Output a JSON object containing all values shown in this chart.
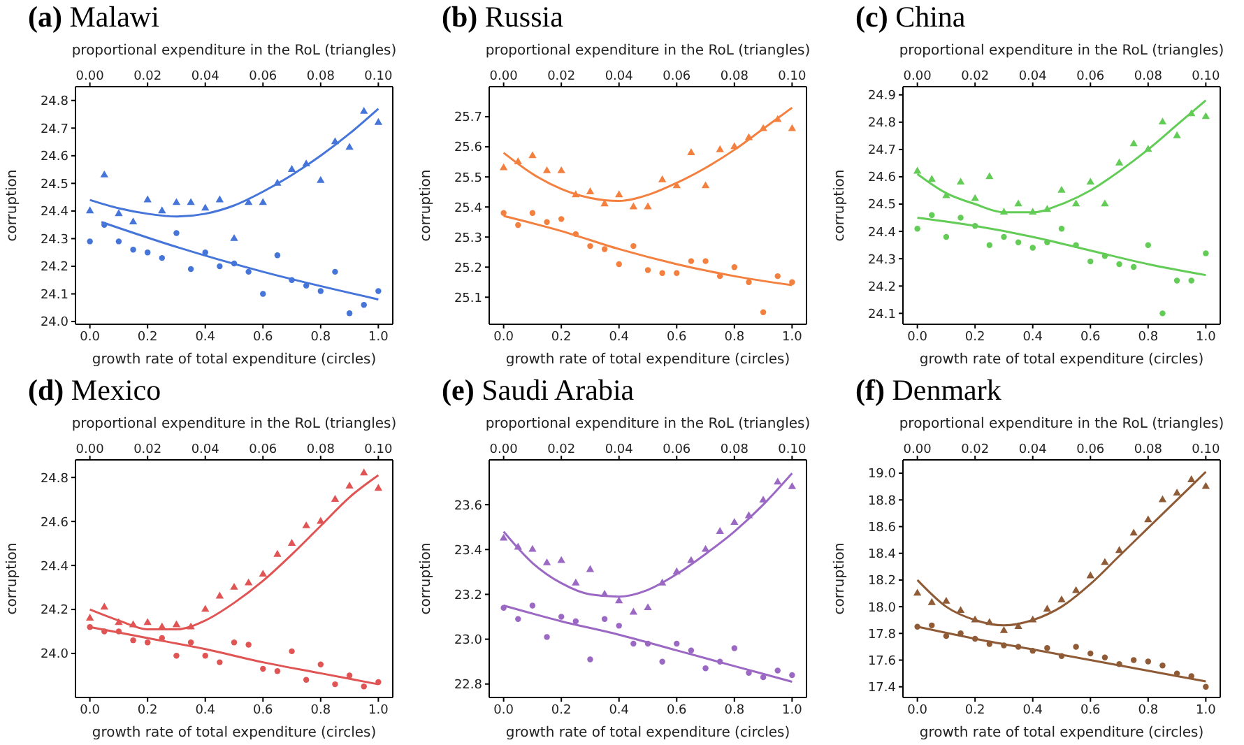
{
  "chart_data": [
    {
      "type": "scatter",
      "title": "(a) Malawi",
      "xlabel": "growth rate of total expenditure (circles)",
      "x2label": "proportional expenditure in the RoL (triangles)",
      "ylabel": "corruption",
      "xlim": [
        -0.05,
        1.05
      ],
      "xticks": [
        {
          "value": 0,
          "label": "0.0"
        },
        {
          "value": 0.2,
          "label": "0.2"
        },
        {
          "value": 0.4,
          "label": "0.4"
        },
        {
          "value": 0.6,
          "label": "0.6"
        },
        {
          "value": 0.8,
          "label": "0.8"
        },
        {
          "value": 1,
          "label": "1.0"
        }
      ],
      "x2lim": [
        -0.005,
        0.105
      ],
      "x2ticks": [
        {
          "value": 0,
          "label": "0.00"
        },
        {
          "value": 0.02,
          "label": "0.02"
        },
        {
          "value": 0.04,
          "label": "0.04"
        },
        {
          "value": 0.06,
          "label": "0.06"
        },
        {
          "value": 0.08,
          "label": "0.08"
        },
        {
          "value": 0.1,
          "label": "0.10"
        }
      ],
      "ylim": [
        23.99,
        24.85
      ],
      "yticks": [
        {
          "value": 24,
          "label": "24.0"
        },
        24.1,
        24.2,
        24.3,
        24.4,
        24.5,
        24.6,
        24.7,
        24.8
      ],
      "series": [
        {
          "type": "scatter",
          "marker": "circle",
          "color": "#4575d9",
          "x": [
            0,
            0.05,
            0.1,
            0.15,
            0.2,
            0.25,
            0.3,
            0.35,
            0.4,
            0.45,
            0.5,
            0.55,
            0.6,
            0.65,
            0.7,
            0.75,
            0.8,
            0.85,
            0.9,
            0.95,
            1
          ],
          "values": [
            24.29,
            24.35,
            24.29,
            24.26,
            24.25,
            24.23,
            24.32,
            24.19,
            24.25,
            24.2,
            24.21,
            24.18,
            24.1,
            24.24,
            24.15,
            24.13,
            24.11,
            24.18,
            24.03,
            24.06,
            24.11
          ]
        },
        {
          "type": "line",
          "color": "#4575d9",
          "x": [
            0.04,
            0.3,
            0.6,
            1
          ],
          "values": [
            24.36,
            24.27,
            24.18,
            24.08
          ]
        },
        {
          "type": "scatter",
          "marker": "triangle",
          "axis": "x2",
          "color": "#4575d9",
          "x": [
            0,
            0.005,
            0.01,
            0.015,
            0.02,
            0.025,
            0.03,
            0.035,
            0.04,
            0.045,
            0.05,
            0.055,
            0.06,
            0.065,
            0.07,
            0.075,
            0.08,
            0.085,
            0.09,
            0.095,
            0.1
          ],
          "values": [
            24.4,
            24.53,
            24.39,
            24.36,
            24.44,
            24.4,
            24.43,
            24.43,
            24.41,
            24.44,
            24.3,
            24.43,
            24.43,
            24.5,
            24.55,
            24.57,
            24.51,
            24.65,
            24.63,
            24.76,
            24.72
          ]
        },
        {
          "type": "line",
          "axis": "x2",
          "color": "#4575d9",
          "x": [
            0,
            0.01,
            0.02,
            0.03,
            0.04,
            0.05,
            0.06,
            0.07,
            0.08,
            0.09,
            0.1
          ],
          "values": [
            24.44,
            24.41,
            24.39,
            24.38,
            24.39,
            24.42,
            24.47,
            24.53,
            24.6,
            24.68,
            24.77
          ]
        }
      ]
    },
    {
      "type": "scatter",
      "title": "(b) Russia",
      "xlabel": "growth rate of total expenditure (circles)",
      "x2label": "proportional expenditure in the RoL (triangles)",
      "ylabel": "corruption",
      "xlim": [
        -0.05,
        1.05
      ],
      "xticks": [
        {
          "value": 0,
          "label": "0.0"
        },
        {
          "value": 0.2,
          "label": "0.2"
        },
        {
          "value": 0.4,
          "label": "0.4"
        },
        {
          "value": 0.6,
          "label": "0.6"
        },
        {
          "value": 0.8,
          "label": "0.8"
        },
        {
          "value": 1,
          "label": "1.0"
        }
      ],
      "x2lim": [
        -0.005,
        0.105
      ],
      "x2ticks": [
        {
          "value": 0,
          "label": "0.00"
        },
        {
          "value": 0.02,
          "label": "0.02"
        },
        {
          "value": 0.04,
          "label": "0.04"
        },
        {
          "value": 0.06,
          "label": "0.06"
        },
        {
          "value": 0.08,
          "label": "0.08"
        },
        {
          "value": 0.1,
          "label": "0.10"
        }
      ],
      "ylim": [
        25.01,
        25.8
      ],
      "yticks": [
        25.1,
        25.2,
        25.3,
        25.4,
        25.5,
        25.6,
        25.7
      ],
      "series": [
        {
          "type": "scatter",
          "marker": "circle",
          "color": "#f4803f",
          "x": [
            0,
            0.05,
            0.1,
            0.15,
            0.2,
            0.25,
            0.3,
            0.35,
            0.4,
            0.45,
            0.5,
            0.55,
            0.6,
            0.65,
            0.7,
            0.75,
            0.8,
            0.85,
            0.9,
            0.95,
            1
          ],
          "values": [
            25.38,
            25.34,
            25.38,
            25.35,
            25.36,
            25.31,
            25.27,
            25.26,
            25.21,
            25.27,
            25.19,
            25.18,
            25.18,
            25.22,
            25.22,
            25.17,
            25.2,
            25.15,
            25.05,
            25.17,
            25.15
          ]
        },
        {
          "type": "line",
          "color": "#f4803f",
          "x": [
            0,
            0.2,
            0.4,
            0.6,
            0.8,
            1
          ],
          "values": [
            25.37,
            25.32,
            25.26,
            25.21,
            25.17,
            25.14
          ]
        },
        {
          "type": "scatter",
          "marker": "triangle",
          "axis": "x2",
          "color": "#f4803f",
          "x": [
            0,
            0.005,
            0.01,
            0.015,
            0.02,
            0.025,
            0.03,
            0.035,
            0.04,
            0.045,
            0.05,
            0.055,
            0.06,
            0.065,
            0.07,
            0.075,
            0.08,
            0.085,
            0.09,
            0.095,
            0.1
          ],
          "values": [
            25.53,
            25.55,
            25.57,
            25.52,
            25.52,
            25.44,
            25.45,
            25.41,
            25.44,
            25.4,
            25.4,
            25.49,
            25.47,
            25.58,
            25.47,
            25.59,
            25.6,
            25.63,
            25.66,
            25.69,
            25.66
          ]
        },
        {
          "type": "line",
          "axis": "x2",
          "color": "#f4803f",
          "x": [
            0,
            0.01,
            0.02,
            0.03,
            0.04,
            0.05,
            0.06,
            0.07,
            0.08,
            0.09,
            0.1
          ],
          "values": [
            25.58,
            25.51,
            25.46,
            25.43,
            25.42,
            25.44,
            25.48,
            25.53,
            25.59,
            25.66,
            25.73
          ]
        }
      ]
    },
    {
      "type": "scatter",
      "title": "(c) China",
      "xlabel": "growth rate of total expenditure (circles)",
      "x2label": "proportional expenditure in the RoL (triangles)",
      "ylabel": "corruption",
      "xlim": [
        -0.05,
        1.05
      ],
      "xticks": [
        {
          "value": 0,
          "label": "0.0"
        },
        {
          "value": 0.2,
          "label": "0.2"
        },
        {
          "value": 0.4,
          "label": "0.4"
        },
        {
          "value": 0.6,
          "label": "0.6"
        },
        {
          "value": 0.8,
          "label": "0.8"
        },
        {
          "value": 1,
          "label": "1.0"
        }
      ],
      "x2lim": [
        -0.005,
        0.105
      ],
      "x2ticks": [
        {
          "value": 0,
          "label": "0.00"
        },
        {
          "value": 0.02,
          "label": "0.02"
        },
        {
          "value": 0.04,
          "label": "0.04"
        },
        {
          "value": 0.06,
          "label": "0.06"
        },
        {
          "value": 0.08,
          "label": "0.08"
        },
        {
          "value": 0.1,
          "label": "0.10"
        }
      ],
      "ylim": [
        24.06,
        24.93
      ],
      "yticks": [
        24.1,
        24.2,
        24.3,
        24.4,
        24.5,
        24.6,
        24.7,
        24.8,
        24.9
      ],
      "series": [
        {
          "type": "scatter",
          "marker": "circle",
          "color": "#62cc56",
          "x": [
            0,
            0.05,
            0.1,
            0.15,
            0.2,
            0.25,
            0.3,
            0.35,
            0.4,
            0.45,
            0.5,
            0.55,
            0.6,
            0.65,
            0.7,
            0.75,
            0.8,
            0.85,
            0.9,
            0.95,
            1
          ],
          "values": [
            24.41,
            24.46,
            24.38,
            24.45,
            24.42,
            24.35,
            24.38,
            24.36,
            24.34,
            24.36,
            24.41,
            24.35,
            24.29,
            24.31,
            24.28,
            24.27,
            24.35,
            24.1,
            24.22,
            24.22,
            24.32
          ]
        },
        {
          "type": "line",
          "color": "#62cc56",
          "x": [
            0,
            0.2,
            0.4,
            0.6,
            0.8,
            1
          ],
          "values": [
            24.45,
            24.42,
            24.38,
            24.33,
            24.28,
            24.24
          ]
        },
        {
          "type": "scatter",
          "marker": "triangle",
          "axis": "x2",
          "color": "#62cc56",
          "x": [
            0,
            0.005,
            0.01,
            0.015,
            0.02,
            0.025,
            0.03,
            0.035,
            0.04,
            0.045,
            0.05,
            0.055,
            0.06,
            0.065,
            0.07,
            0.075,
            0.08,
            0.085,
            0.09,
            0.095,
            0.1
          ],
          "values": [
            24.62,
            24.59,
            24.53,
            24.58,
            24.52,
            24.6,
            24.47,
            24.5,
            24.47,
            24.48,
            24.55,
            24.5,
            24.58,
            24.5,
            24.65,
            24.72,
            24.7,
            24.8,
            24.75,
            24.83,
            24.82
          ]
        },
        {
          "type": "line",
          "axis": "x2",
          "color": "#62cc56",
          "x": [
            0,
            0.01,
            0.02,
            0.03,
            0.04,
            0.05,
            0.06,
            0.07,
            0.08,
            0.09,
            0.1
          ],
          "values": [
            24.61,
            24.54,
            24.5,
            24.47,
            24.47,
            24.5,
            24.55,
            24.62,
            24.7,
            24.79,
            24.88
          ]
        }
      ]
    },
    {
      "type": "scatter",
      "title": "(d) Mexico",
      "xlabel": "growth rate of total expenditure (circles)",
      "x2label": "proportional expenditure in the RoL (triangles)",
      "ylabel": "corruption",
      "xlim": [
        -0.05,
        1.05
      ],
      "xticks": [
        {
          "value": 0,
          "label": "0.0"
        },
        {
          "value": 0.2,
          "label": "0.2"
        },
        {
          "value": 0.4,
          "label": "0.4"
        },
        {
          "value": 0.6,
          "label": "0.6"
        },
        {
          "value": 0.8,
          "label": "0.8"
        },
        {
          "value": 1,
          "label": "1.0"
        }
      ],
      "x2lim": [
        -0.005,
        0.105
      ],
      "x2ticks": [
        {
          "value": 0,
          "label": "0.00"
        },
        {
          "value": 0.02,
          "label": "0.02"
        },
        {
          "value": 0.04,
          "label": "0.04"
        },
        {
          "value": 0.06,
          "label": "0.06"
        },
        {
          "value": 0.08,
          "label": "0.08"
        },
        {
          "value": 0.1,
          "label": "0.10"
        }
      ],
      "ylim": [
        23.8,
        24.88
      ],
      "yticks": [
        {
          "value": 24,
          "label": "24.0"
        },
        24.2,
        24.4,
        24.6,
        24.8
      ],
      "series": [
        {
          "type": "scatter",
          "marker": "circle",
          "color": "#e05454",
          "x": [
            0,
            0.05,
            0.1,
            0.15,
            0.2,
            0.25,
            0.3,
            0.35,
            0.4,
            0.45,
            0.5,
            0.55,
            0.6,
            0.65,
            0.7,
            0.75,
            0.8,
            0.85,
            0.9,
            0.95,
            1
          ],
          "values": [
            24.12,
            24.1,
            24.1,
            24.06,
            24.05,
            24.07,
            23.99,
            24.05,
            23.99,
            23.96,
            24.05,
            24.04,
            23.93,
            23.92,
            24.01,
            23.88,
            23.95,
            23.86,
            23.9,
            23.85,
            23.87
          ]
        },
        {
          "type": "line",
          "color": "#e05454",
          "x": [
            0,
            0.2,
            0.4,
            0.6,
            0.8,
            1
          ],
          "values": [
            24.12,
            24.07,
            24.02,
            23.96,
            23.91,
            23.86
          ]
        },
        {
          "type": "scatter",
          "marker": "triangle",
          "axis": "x2",
          "color": "#e05454",
          "x": [
            0,
            0.005,
            0.01,
            0.015,
            0.02,
            0.025,
            0.03,
            0.035,
            0.04,
            0.045,
            0.05,
            0.055,
            0.06,
            0.065,
            0.07,
            0.075,
            0.08,
            0.085,
            0.09,
            0.095,
            0.1
          ],
          "values": [
            24.16,
            24.21,
            24.14,
            24.13,
            24.14,
            24.12,
            24.13,
            24.12,
            24.2,
            24.26,
            24.3,
            24.32,
            24.36,
            24.45,
            24.5,
            24.58,
            24.6,
            24.7,
            24.76,
            24.82,
            24.75
          ]
        },
        {
          "type": "line",
          "axis": "x2",
          "color": "#e05454",
          "x": [
            0,
            0.01,
            0.02,
            0.03,
            0.04,
            0.05,
            0.06,
            0.07,
            0.08,
            0.09,
            0.1
          ],
          "values": [
            24.2,
            24.15,
            24.11,
            24.11,
            24.15,
            24.23,
            24.33,
            24.45,
            24.58,
            24.71,
            24.81
          ]
        }
      ]
    },
    {
      "type": "scatter",
      "title": "(e) Saudi Arabia",
      "xlabel": "growth rate of total expenditure (circles)",
      "x2label": "proportional expenditure in the RoL (triangles)",
      "ylabel": "corruption",
      "xlim": [
        -0.05,
        1.05
      ],
      "xticks": [
        {
          "value": 0,
          "label": "0.0"
        },
        {
          "value": 0.2,
          "label": "0.2"
        },
        {
          "value": 0.4,
          "label": "0.4"
        },
        {
          "value": 0.6,
          "label": "0.6"
        },
        {
          "value": 0.8,
          "label": "0.8"
        },
        {
          "value": 1,
          "label": "1.0"
        }
      ],
      "x2lim": [
        -0.005,
        0.105
      ],
      "x2ticks": [
        {
          "value": 0,
          "label": "0.00"
        },
        {
          "value": 0.02,
          "label": "0.02"
        },
        {
          "value": 0.04,
          "label": "0.04"
        },
        {
          "value": 0.06,
          "label": "0.06"
        },
        {
          "value": 0.08,
          "label": "0.08"
        },
        {
          "value": 0.1,
          "label": "0.10"
        }
      ],
      "ylim": [
        22.74,
        23.8
      ],
      "yticks": [
        22.8,
        {
          "value": 23,
          "label": "23.0"
        },
        23.2,
        23.4,
        23.6
      ],
      "series": [
        {
          "type": "scatter",
          "marker": "circle",
          "color": "#9b69c4",
          "x": [
            0,
            0.05,
            0.1,
            0.15,
            0.2,
            0.25,
            0.3,
            0.35,
            0.4,
            0.45,
            0.5,
            0.55,
            0.6,
            0.65,
            0.7,
            0.75,
            0.8,
            0.85,
            0.9,
            0.95,
            1
          ],
          "values": [
            23.14,
            23.09,
            23.15,
            23.01,
            23.1,
            23.08,
            22.91,
            23.09,
            23.06,
            22.98,
            22.98,
            22.9,
            22.98,
            22.95,
            22.87,
            22.9,
            22.96,
            22.85,
            22.83,
            22.86,
            22.84
          ]
        },
        {
          "type": "line",
          "color": "#9b69c4",
          "x": [
            0,
            0.2,
            0.4,
            0.6,
            0.8,
            1
          ],
          "values": [
            23.15,
            23.08,
            23.02,
            22.95,
            22.88,
            22.81
          ]
        },
        {
          "type": "scatter",
          "marker": "triangle",
          "axis": "x2",
          "color": "#9b69c4",
          "x": [
            0,
            0.005,
            0.01,
            0.015,
            0.02,
            0.025,
            0.03,
            0.035,
            0.04,
            0.045,
            0.05,
            0.055,
            0.06,
            0.065,
            0.07,
            0.075,
            0.08,
            0.085,
            0.09,
            0.095,
            0.1
          ],
          "values": [
            23.45,
            23.41,
            23.4,
            23.34,
            23.35,
            23.25,
            23.31,
            23.2,
            23.17,
            23.12,
            23.14,
            23.25,
            23.3,
            23.35,
            23.4,
            23.48,
            23.52,
            23.55,
            23.62,
            23.7,
            23.68
          ]
        },
        {
          "type": "line",
          "axis": "x2",
          "color": "#9b69c4",
          "x": [
            0,
            0.01,
            0.02,
            0.03,
            0.04,
            0.05,
            0.06,
            0.07,
            0.08,
            0.09,
            0.1
          ],
          "values": [
            23.48,
            23.34,
            23.25,
            23.2,
            23.19,
            23.22,
            23.29,
            23.38,
            23.48,
            23.6,
            23.74
          ]
        }
      ]
    },
    {
      "type": "scatter",
      "title": "(f) Denmark",
      "xlabel": "growth rate of total expenditure (circles)",
      "x2label": "proportional expenditure in the RoL (triangles)",
      "ylabel": "corruption",
      "xlim": [
        -0.05,
        1.05
      ],
      "xticks": [
        {
          "value": 0,
          "label": "0.0"
        },
        {
          "value": 0.2,
          "label": "0.2"
        },
        {
          "value": 0.4,
          "label": "0.4"
        },
        {
          "value": 0.6,
          "label": "0.6"
        },
        {
          "value": 0.8,
          "label": "0.8"
        },
        {
          "value": 1,
          "label": "1.0"
        }
      ],
      "x2lim": [
        -0.005,
        0.105
      ],
      "x2ticks": [
        {
          "value": 0,
          "label": "0.00"
        },
        {
          "value": 0.02,
          "label": "0.02"
        },
        {
          "value": 0.04,
          "label": "0.04"
        },
        {
          "value": 0.06,
          "label": "0.06"
        },
        {
          "value": 0.08,
          "label": "0.08"
        },
        {
          "value": 0.1,
          "label": "0.10"
        }
      ],
      "ylim": [
        17.32,
        19.1
      ],
      "yticks": [
        17.4,
        17.6,
        17.8,
        {
          "value": 18,
          "label": "18.0"
        },
        18.2,
        18.4,
        18.6,
        18.8,
        {
          "value": 19,
          "label": "19.0"
        }
      ],
      "series": [
        {
          "type": "scatter",
          "marker": "circle",
          "color": "#8f5b36",
          "x": [
            0,
            0.05,
            0.1,
            0.15,
            0.2,
            0.25,
            0.3,
            0.35,
            0.4,
            0.45,
            0.5,
            0.55,
            0.6,
            0.65,
            0.7,
            0.75,
            0.8,
            0.85,
            0.9,
            0.95,
            1
          ],
          "values": [
            17.85,
            17.86,
            17.78,
            17.8,
            17.76,
            17.72,
            17.71,
            17.7,
            17.67,
            17.69,
            17.63,
            17.7,
            17.65,
            17.62,
            17.57,
            17.6,
            17.59,
            17.56,
            17.5,
            17.48,
            17.4
          ]
        },
        {
          "type": "line",
          "color": "#8f5b36",
          "x": [
            0,
            0.2,
            0.4,
            0.6,
            0.8,
            1
          ],
          "values": [
            17.85,
            17.76,
            17.68,
            17.6,
            17.52,
            17.44
          ]
        },
        {
          "type": "scatter",
          "marker": "triangle",
          "axis": "x2",
          "color": "#8f5b36",
          "x": [
            0,
            0.005,
            0.01,
            0.015,
            0.02,
            0.025,
            0.03,
            0.035,
            0.04,
            0.045,
            0.05,
            0.055,
            0.06,
            0.065,
            0.07,
            0.075,
            0.08,
            0.085,
            0.09,
            0.095,
            0.1
          ],
          "values": [
            18.1,
            18.03,
            18.04,
            17.97,
            17.9,
            17.88,
            17.82,
            17.85,
            17.9,
            17.98,
            18.05,
            18.12,
            18.23,
            18.33,
            18.42,
            18.55,
            18.65,
            18.8,
            18.85,
            18.95,
            18.9
          ]
        },
        {
          "type": "line",
          "axis": "x2",
          "color": "#8f5b36",
          "x": [
            0,
            0.01,
            0.02,
            0.03,
            0.04,
            0.05,
            0.06,
            0.07,
            0.08,
            0.09,
            0.1
          ],
          "values": [
            18.2,
            18,
            17.9,
            17.86,
            17.9,
            18,
            18.17,
            18.38,
            18.59,
            18.8,
            19.01
          ]
        }
      ]
    }
  ]
}
